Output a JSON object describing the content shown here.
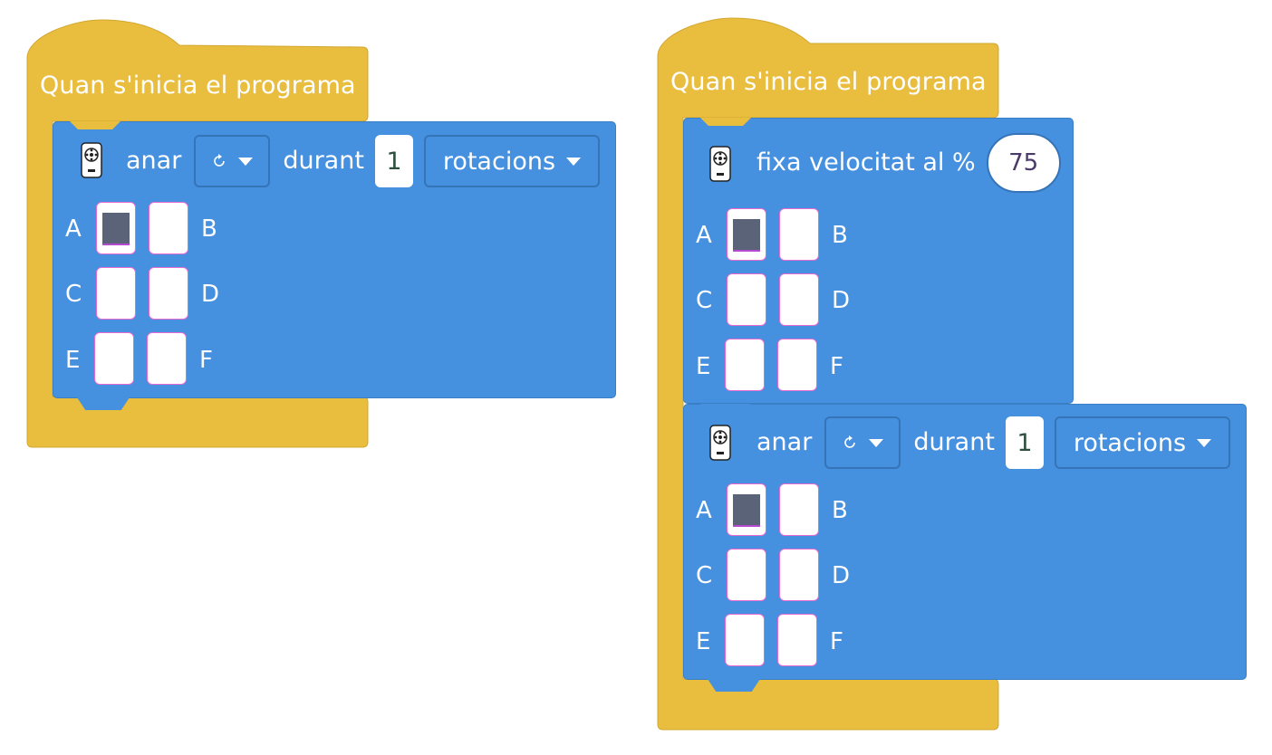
{
  "colors": {
    "event_block": "#e9bd3e",
    "motor_block": "#4590df",
    "port_selected": "#5a6378",
    "port_border": "#e66ad2"
  },
  "scripts": [
    {
      "hat_label": "Quan s'inicia el programa",
      "blocks": [
        {
          "icon": "motor-icon",
          "words": [
            "anar",
            "durant"
          ],
          "direction_icon": "rotate-clockwise-icon",
          "amount": "1",
          "unit": "rotacions",
          "ports": [
            {
              "label": "A",
              "selected": true
            },
            {
              "label": "B",
              "selected": false
            },
            {
              "label": "C",
              "selected": false
            },
            {
              "label": "D",
              "selected": false
            },
            {
              "label": "E",
              "selected": false
            },
            {
              "label": "F",
              "selected": false
            }
          ]
        }
      ]
    },
    {
      "hat_label": "Quan s'inicia el programa",
      "blocks": [
        {
          "icon": "motor-icon",
          "text": "fixa velocitat al %",
          "value": "75",
          "ports": [
            {
              "label": "A",
              "selected": true
            },
            {
              "label": "B",
              "selected": false
            },
            {
              "label": "C",
              "selected": false
            },
            {
              "label": "D",
              "selected": false
            },
            {
              "label": "E",
              "selected": false
            },
            {
              "label": "F",
              "selected": false
            }
          ]
        },
        {
          "icon": "motor-icon",
          "words": [
            "anar",
            "durant"
          ],
          "direction_icon": "rotate-clockwise-icon",
          "amount": "1",
          "unit": "rotacions",
          "ports": [
            {
              "label": "A",
              "selected": true
            },
            {
              "label": "B",
              "selected": false
            },
            {
              "label": "C",
              "selected": false
            },
            {
              "label": "D",
              "selected": false
            },
            {
              "label": "E",
              "selected": false
            },
            {
              "label": "F",
              "selected": false
            }
          ]
        }
      ]
    }
  ]
}
